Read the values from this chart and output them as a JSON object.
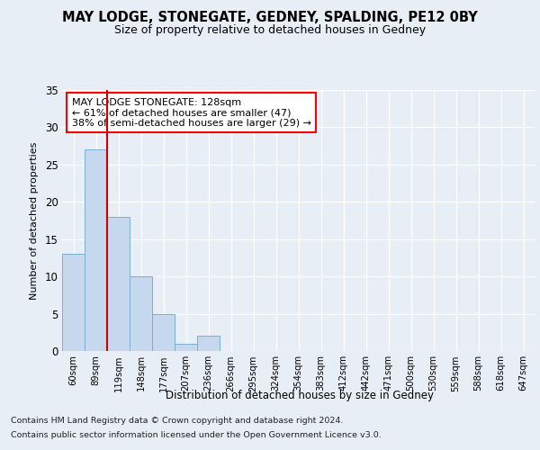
{
  "title": "MAY LODGE, STONEGATE, GEDNEY, SPALDING, PE12 0BY",
  "subtitle": "Size of property relative to detached houses in Gedney",
  "xlabel": "Distribution of detached houses by size in Gedney",
  "ylabel": "Number of detached properties",
  "bar_values": [
    13,
    27,
    18,
    10,
    5,
    1,
    2,
    0,
    0,
    0,
    0,
    0,
    0,
    0,
    0,
    0,
    0,
    0,
    0,
    0,
    0
  ],
  "categories": [
    "60sqm",
    "89sqm",
    "119sqm",
    "148sqm",
    "177sqm",
    "207sqm",
    "236sqm",
    "266sqm",
    "295sqm",
    "324sqm",
    "354sqm",
    "383sqm",
    "412sqm",
    "442sqm",
    "471sqm",
    "500sqm",
    "530sqm",
    "559sqm",
    "588sqm",
    "618sqm",
    "647sqm"
  ],
  "bar_color": "#c5d8ed",
  "bar_edge_color": "#7aafd4",
  "ylim": [
    0,
    35
  ],
  "yticks": [
    0,
    5,
    10,
    15,
    20,
    25,
    30,
    35
  ],
  "annotation_title": "MAY LODGE STONEGATE: 128sqm",
  "annotation_line1": "← 61% of detached houses are smaller (47)",
  "annotation_line2": "38% of semi-detached houses are larger (29) →",
  "footer_line1": "Contains HM Land Registry data © Crown copyright and database right 2024.",
  "footer_line2": "Contains public sector information licensed under the Open Government Licence v3.0.",
  "background_color": "#e8eef6",
  "plot_background": "#e8eef6",
  "grid_color": "#ffffff",
  "red_line_color": "#cc0000"
}
